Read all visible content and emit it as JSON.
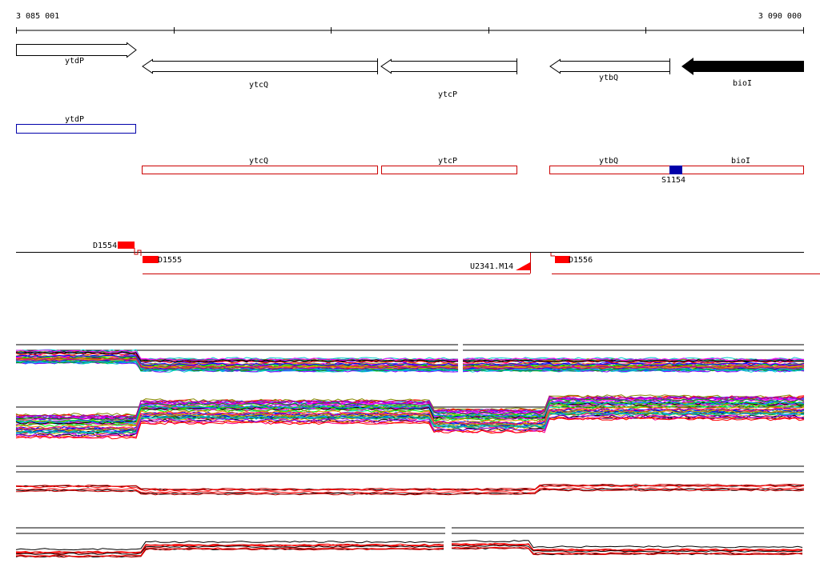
{
  "ruler": {
    "start_label": "3 085 001",
    "end_label": "3 090 000"
  },
  "genes": {
    "ytdP": "ytdP",
    "ytcQ": "ytcQ",
    "ytcP": "ytcP",
    "ytbQ": "ytbQ",
    "bioI": "bioI"
  },
  "annotation_track": {
    "ytdP": "ytdP",
    "ytcQ": "ytcQ",
    "ytcP": "ytcP",
    "ytbQ": "ytbQ",
    "bioI": "bioI",
    "site": "S1154"
  },
  "segments": {
    "d1554": "D1554",
    "d1555": "D1555",
    "u2341": "U2341.M14",
    "d1556": "D1556"
  },
  "colors": {
    "feature_outline": "#cc0000",
    "feature_fill": "#ff0000",
    "annotation_blue": "#0000aa",
    "bioI_fill": "#000000"
  }
}
